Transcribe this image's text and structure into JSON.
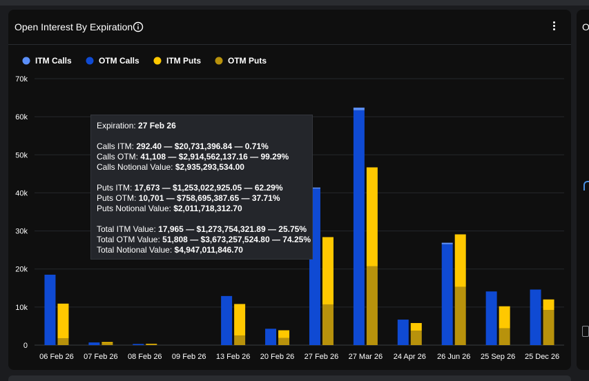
{
  "panel": {
    "title": "Open Interest By Expiration"
  },
  "side_panel": {
    "title": "O"
  },
  "colors": {
    "itm_calls": "#5b8ff9",
    "otm_calls": "#0f4ad3",
    "itm_puts": "#ffc800",
    "otm_puts": "#b8920c"
  },
  "chart_data": {
    "type": "bar",
    "stacked": true,
    "categories": [
      "06 Feb 26",
      "07 Feb 26",
      "08 Feb 26",
      "09 Feb 26",
      "13 Feb 26",
      "20 Feb 26",
      "27 Feb 26",
      "27 Mar 26",
      "24 Apr 26",
      "26 Jun 26",
      "25 Sep 26",
      "25 Dec 26"
    ],
    "ylim": [
      0,
      70000
    ],
    "yticks": [
      0,
      10000,
      20000,
      30000,
      40000,
      50000,
      60000,
      70000
    ],
    "ytick_labels": [
      "0",
      "10k",
      "20k",
      "30k",
      "40k",
      "50k",
      "60k",
      "70k"
    ],
    "grid": true,
    "legend_position": "top-left",
    "series": [
      {
        "name": "ITM Calls",
        "stack": "calls",
        "values": [
          0,
          0,
          0,
          0,
          0,
          0,
          292,
          700,
          0,
          400,
          0,
          0
        ]
      },
      {
        "name": "OTM Calls",
        "stack": "calls",
        "values": [
          18500,
          700,
          300,
          0,
          12900,
          4300,
          41108,
          61700,
          6700,
          26500,
          14100,
          14600
        ]
      },
      {
        "name": "ITM Puts",
        "stack": "puts",
        "values": [
          9100,
          300,
          150,
          0,
          8300,
          2000,
          17673,
          26000,
          2000,
          13800,
          5800,
          2800
        ]
      },
      {
        "name": "OTM Puts",
        "stack": "puts",
        "values": [
          1800,
          500,
          200,
          0,
          2500,
          1900,
          10701,
          20700,
          3800,
          15300,
          4400,
          9200
        ]
      }
    ]
  },
  "tooltip": {
    "expiration_label": "Expiration:",
    "expiration_value": "27 Feb 26",
    "calls_itm_label": "Calls ITM:",
    "calls_itm_value": "292.40 — $20,731,396.84 — 0.71%",
    "calls_otm_label": "Calls OTM:",
    "calls_otm_value": "41,108 — $2,914,562,137.16 — 99.29%",
    "calls_notional_label": "Calls Notional Value:",
    "calls_notional_value": "$2,935,293,534.00",
    "puts_itm_label": "Puts ITM:",
    "puts_itm_value": "17,673 — $1,253,022,925.05 — 62.29%",
    "puts_otm_label": "Puts OTM:",
    "puts_otm_value": "10,701 — $758,695,387.65 — 37.71%",
    "puts_notional_label": "Puts Notional Value:",
    "puts_notional_value": "$2,011,718,312.70",
    "total_itm_label": "Total ITM Value:",
    "total_itm_value": "17,965 — $1,273,754,321.89 — 25.75%",
    "total_otm_label": "Total OTM Value:",
    "total_otm_value": "51,808 — $3,673,257,524.80 — 74.25%",
    "total_notional_label": "Total Notional Value:",
    "total_notional_value": "$4,947,011,846.70"
  }
}
